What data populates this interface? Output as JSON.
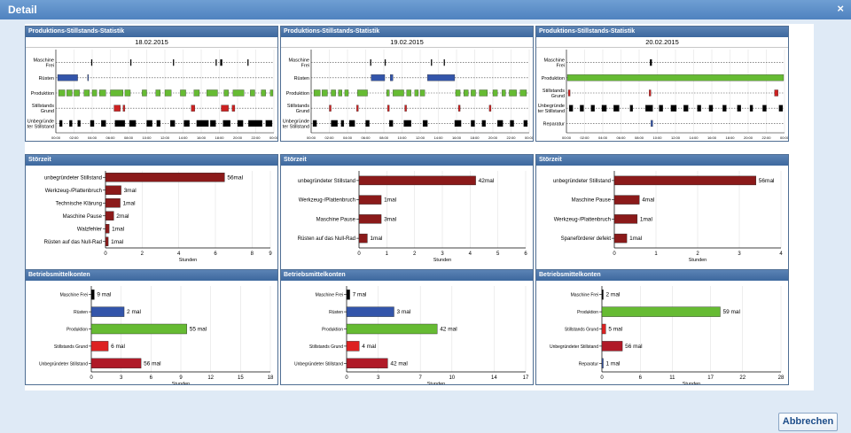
{
  "window": {
    "title": "Detail",
    "close_glyph": "×"
  },
  "footer": {
    "close_button": "Abbrechen"
  },
  "axis_label_hours": "Stunden",
  "chart_data": [
    {
      "type": "timeline",
      "title": "Produktions-Stillstands-Statistik",
      "date": "18.02.2015",
      "x_ticks": [
        "00:00",
        "02:00",
        "04:00",
        "06:00",
        "08:00",
        "10:00",
        "12:00",
        "14:00",
        "16:00",
        "18:00",
        "20:00",
        "22:00",
        "00:00"
      ],
      "rows": [
        {
          "label": [
            "Maschine",
            "Frei"
          ],
          "color": "#000000",
          "segments": [
            [
              3.9,
              4.0
            ],
            [
              8.2,
              8.3
            ],
            [
              12.9,
              13.0
            ],
            [
              17.6,
              17.7
            ],
            [
              18.1,
              18.3
            ],
            [
              21.1,
              21.2
            ]
          ]
        },
        {
          "label": [
            "Rüsten"
          ],
          "color": "#3355aa",
          "segments": [
            [
              0.2,
              2.4
            ],
            [
              3.5,
              3.6
            ]
          ]
        },
        {
          "label": [
            "Produktion"
          ],
          "color": "#66bb33",
          "segments": [
            [
              0.3,
              1.0
            ],
            [
              1.2,
              1.8
            ],
            [
              2.0,
              2.6
            ],
            [
              3.1,
              3.7
            ],
            [
              4.0,
              4.5
            ],
            [
              4.8,
              5.5
            ],
            [
              6.0,
              7.4
            ],
            [
              7.6,
              8.2
            ],
            [
              9.5,
              10.0
            ],
            [
              11.0,
              11.5
            ],
            [
              12.0,
              12.7
            ],
            [
              13.7,
              14.3
            ],
            [
              15.2,
              15.8
            ],
            [
              16.6,
              17.8
            ],
            [
              18.5,
              19.0
            ],
            [
              19.5,
              20.7
            ],
            [
              21.4,
              21.9
            ],
            [
              22.6,
              23.1
            ],
            [
              23.6,
              23.9
            ]
          ]
        },
        {
          "label": [
            "Stillstands",
            "Grund"
          ],
          "color": "#cc2222",
          "segments": [
            [
              6.4,
              7.1
            ],
            [
              7.4,
              7.6
            ],
            [
              14.9,
              15.3
            ],
            [
              18.2,
              19.0
            ],
            [
              19.4,
              19.7
            ]
          ]
        },
        {
          "label": [
            "Unbegründe",
            "ter Stillstand"
          ],
          "color": "#000000",
          "segments": [
            [
              0.4,
              0.7
            ],
            [
              1.5,
              1.8
            ],
            [
              2.4,
              2.7
            ],
            [
              3.8,
              4.2
            ],
            [
              5.0,
              5.5
            ],
            [
              6.5,
              7.6
            ],
            [
              8.1,
              8.8
            ],
            [
              10.0,
              10.6
            ],
            [
              11.1,
              11.5
            ],
            [
              12.6,
              13.1
            ],
            [
              14.1,
              14.7
            ],
            [
              15.5,
              16.8
            ],
            [
              17.0,
              17.6
            ],
            [
              18.4,
              19.2
            ],
            [
              20.0,
              20.6
            ],
            [
              21.2,
              22.7
            ],
            [
              23.1,
              23.8
            ]
          ]
        }
      ]
    },
    {
      "type": "timeline",
      "title": "Produktions-Stillstands-Statistik",
      "date": "19.02.2015",
      "x_ticks": [
        "00:00",
        "02:00",
        "04:00",
        "06:00",
        "08:00",
        "10:00",
        "12:00",
        "14:00",
        "16:00",
        "18:00",
        "20:00",
        "22:00",
        "00:00"
      ],
      "rows": [
        {
          "label": [
            "Maschine",
            "Frei"
          ],
          "color": "#000000",
          "segments": [
            [
              6.5,
              6.6
            ],
            [
              8.1,
              8.2
            ],
            [
              13.2,
              13.3
            ],
            [
              14.6,
              14.7
            ]
          ]
        },
        {
          "label": [
            "Rüsten"
          ],
          "color": "#3355aa",
          "segments": [
            [
              6.6,
              8.1
            ],
            [
              8.7,
              9.0
            ],
            [
              12.8,
              15.8
            ]
          ]
        },
        {
          "label": [
            "Produktion"
          ],
          "color": "#66bb33",
          "segments": [
            [
              0.3,
              1.0
            ],
            [
              1.2,
              1.8
            ],
            [
              2.2,
              2.7
            ],
            [
              3.0,
              3.4
            ],
            [
              3.7,
              4.1
            ],
            [
              5.1,
              6.2
            ],
            [
              8.3,
              8.6
            ],
            [
              9.0,
              10.2
            ],
            [
              10.5,
              11.0
            ],
            [
              11.4,
              11.8
            ],
            [
              12.0,
              12.5
            ],
            [
              15.9,
              16.4
            ],
            [
              16.8,
              17.3
            ],
            [
              17.6,
              18.1
            ],
            [
              18.5,
              19.4
            ],
            [
              20.0,
              20.5
            ],
            [
              21.0,
              21.4
            ],
            [
              21.8,
              22.6
            ],
            [
              23.0,
              23.7
            ]
          ]
        },
        {
          "label": [
            "Stillstands",
            "Grund"
          ],
          "color": "#cc2222",
          "segments": [
            [
              2.0,
              2.2
            ],
            [
              5.0,
              5.2
            ],
            [
              8.4,
              8.6
            ],
            [
              10.3,
              10.5
            ],
            [
              16.2,
              16.4
            ],
            [
              19.6,
              19.8
            ]
          ]
        },
        {
          "label": [
            "Unbegründe",
            "ter Stillstand"
          ],
          "color": "#000000",
          "segments": [
            [
              0.2,
              0.6
            ],
            [
              2.2,
              2.9
            ],
            [
              3.3,
              3.6
            ],
            [
              4.2,
              4.8
            ],
            [
              6.0,
              6.4
            ],
            [
              8.6,
              9.0
            ],
            [
              10.2,
              11.0
            ],
            [
              12.3,
              12.8
            ],
            [
              15.8,
              16.5
            ],
            [
              17.6,
              18.0
            ],
            [
              18.8,
              19.2
            ],
            [
              20.5,
              21.1
            ],
            [
              21.9,
              22.3
            ],
            [
              23.4,
              23.8
            ]
          ]
        }
      ]
    },
    {
      "type": "timeline",
      "title": "Produktions-Stillstands-Statistik",
      "date": "20.02.2015",
      "x_ticks": [
        "00:00",
        "02:00",
        "04:00",
        "06:00",
        "08:00",
        "10:00",
        "12:00",
        "14:00",
        "16:00",
        "18:00",
        "20:00",
        "22:00",
        "00:00"
      ],
      "rows": [
        {
          "label": [
            "Maschine",
            "Frei"
          ],
          "color": "#000000",
          "segments": [
            [
              9.2,
              9.4
            ]
          ]
        },
        {
          "label": [
            "Produktion"
          ],
          "color": "#66bb33",
          "segments": [
            [
              0.1,
              23.9
            ]
          ]
        },
        {
          "label": [
            "Stillstands",
            "Grund"
          ],
          "color": "#cc2222",
          "segments": [
            [
              0.2,
              0.4
            ],
            [
              9.1,
              9.3
            ],
            [
              22.9,
              23.3
            ]
          ]
        },
        {
          "label": [
            "Unbegründe",
            "ter Stillstand"
          ],
          "color": "#000000",
          "segments": [
            [
              0.3,
              0.7
            ],
            [
              1.5,
              1.9
            ],
            [
              2.7,
              3.1
            ],
            [
              3.9,
              4.4
            ],
            [
              5.2,
              5.8
            ],
            [
              7.0,
              7.3
            ],
            [
              8.7,
              9.5
            ],
            [
              10.2,
              10.6
            ],
            [
              11.5,
              12.1
            ],
            [
              12.9,
              13.4
            ],
            [
              14.4,
              14.8
            ],
            [
              15.7,
              16.1
            ],
            [
              17.2,
              17.6
            ],
            [
              18.8,
              19.2
            ],
            [
              20.2,
              20.5
            ],
            [
              21.6,
              22.0
            ],
            [
              23.4,
              23.8
            ]
          ]
        },
        {
          "label": [
            "Reparatur"
          ],
          "color": "#3355aa",
          "segments": [
            [
              9.3,
              9.5
            ]
          ]
        }
      ]
    },
    {
      "type": "bar",
      "orientation": "horizontal",
      "title": "Störzeit",
      "xlabel": "Stunden",
      "x_ticks": [
        0,
        2,
        4,
        6,
        8,
        9
      ],
      "xlim": [
        0,
        9
      ],
      "categories": [
        "unbegründeter Stillstand",
        "Werkzeug-/Plattenbruch",
        "Technische Klärung",
        "Maschine Pause",
        "Walzfehler",
        "Rüsten auf das Null-Rad"
      ],
      "values": [
        6.5,
        0.85,
        0.8,
        0.45,
        0.2,
        0.15
      ],
      "data_labels": [
        "56mal",
        "3mal",
        "1mal",
        "2mal",
        "1mal",
        "1mal"
      ],
      "color": "#8b1a1a"
    },
    {
      "type": "bar",
      "orientation": "horizontal",
      "title": "Störzeit",
      "xlabel": "Stunden",
      "x_ticks": [
        0,
        1,
        2,
        3,
        4,
        5,
        6
      ],
      "xlim": [
        0,
        6
      ],
      "categories": [
        "unbegründeter Stillstand",
        "Werkzeug-/Plattenbruch",
        "Maschine Pause",
        "Rüsten auf das Null-Rad"
      ],
      "values": [
        4.2,
        0.8,
        0.8,
        0.3
      ],
      "data_labels": [
        "42mal",
        "1mal",
        "3mal",
        "1mal"
      ],
      "color": "#8b1a1a"
    },
    {
      "type": "bar",
      "orientation": "horizontal",
      "title": "Störzeit",
      "xlabel": "Stunden",
      "x_ticks": [
        0,
        1,
        2,
        3,
        4
      ],
      "xlim": [
        0,
        4
      ],
      "categories": [
        "unbegründeter Stillstand",
        "Maschine Pause",
        "Werkzeug-/Plattenbruch",
        "Spaneförderer defekt"
      ],
      "values": [
        3.4,
        0.6,
        0.55,
        0.3
      ],
      "data_labels": [
        "56mal",
        "4mal",
        "1mal",
        "1mal"
      ],
      "color": "#8b1a1a"
    },
    {
      "type": "bar",
      "orientation": "horizontal",
      "title": "Betriebsmittelkonten",
      "xlabel": "Stunden",
      "x_ticks": [
        0,
        3,
        6,
        9,
        12,
        15,
        18
      ],
      "xlim": [
        0,
        18
      ],
      "categories": [
        "Maschine Frei",
        "Rüsten",
        "Produktion",
        "Stillstands Grund",
        "Unbegründeter Stillstand"
      ],
      "values": [
        0.3,
        3.3,
        9.6,
        1.7,
        5.0
      ],
      "data_labels": [
        "9 mal",
        "2 mal",
        "55 mal",
        "6 mal",
        "56 mal"
      ],
      "colors": [
        "#000000",
        "#3355aa",
        "#66bb33",
        "#dd2222",
        "#b01a28"
      ]
    },
    {
      "type": "bar",
      "orientation": "horizontal",
      "title": "Betriebsmittelkonten",
      "xlabel": "Stunden",
      "x_ticks": [
        0,
        3,
        7,
        10,
        14,
        17
      ],
      "xlim": [
        0,
        17
      ],
      "categories": [
        "Maschine Frei",
        "Rüsten",
        "Produktion",
        "Stillstands Grund",
        "Unbegründeter Stillstand"
      ],
      "values": [
        0.3,
        4.5,
        8.6,
        1.2,
        3.9
      ],
      "data_labels": [
        "7 mal",
        "3 mal",
        "42 mal",
        "4 mal",
        "42 mal"
      ],
      "colors": [
        "#000000",
        "#3355aa",
        "#66bb33",
        "#dd2222",
        "#b01a28"
      ]
    },
    {
      "type": "bar",
      "orientation": "horizontal",
      "title": "Betriebsmittelkonten",
      "xlabel": "Stunden",
      "x_ticks": [
        0,
        6,
        11,
        17,
        22,
        28
      ],
      "xlim": [
        0,
        28
      ],
      "categories": [
        "Maschine Frei",
        "Produktion",
        "Stillstands Grund",
        "Unbegründeter Stillstand",
        "Reparatur"
      ],
      "values": [
        0.2,
        18.5,
        0.6,
        3.2,
        0.1
      ],
      "data_labels": [
        "2 mal",
        "59 mal",
        "5 mal",
        "56 mal",
        "1 mal"
      ],
      "colors": [
        "#000000",
        "#66bb33",
        "#dd2222",
        "#b01a28",
        "#3355aa"
      ]
    }
  ]
}
